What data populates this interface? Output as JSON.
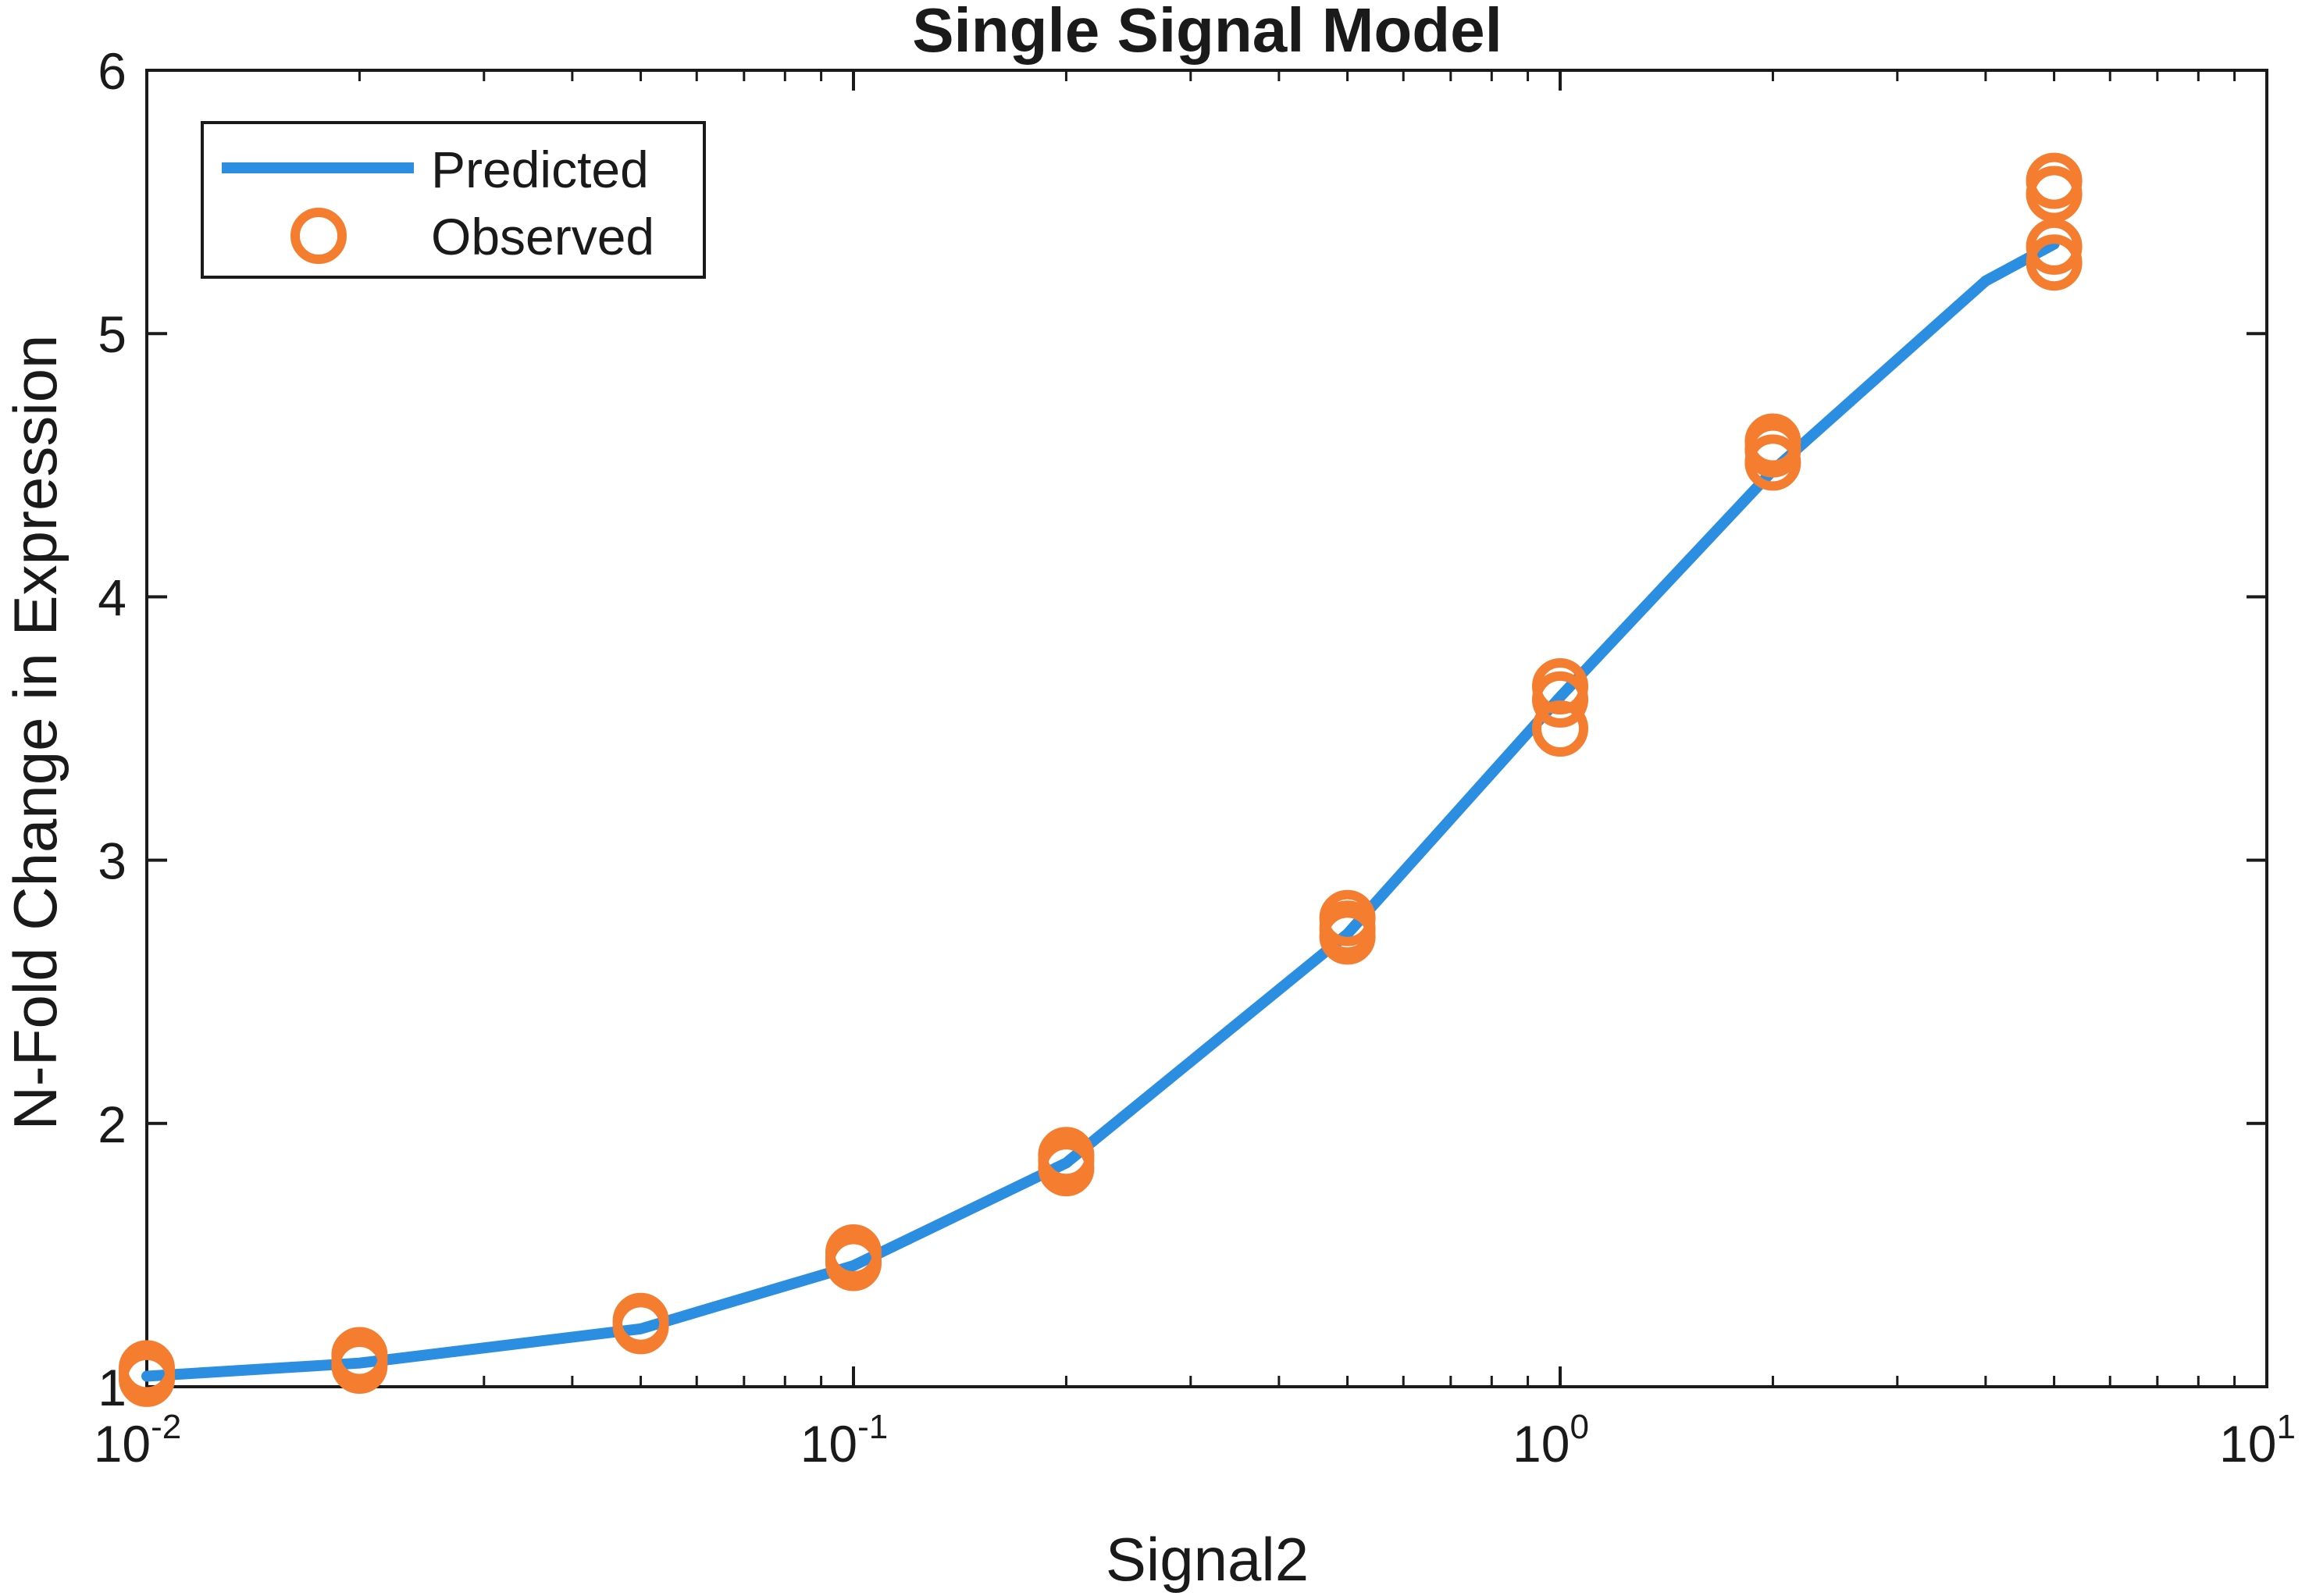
{
  "chart_data": {
    "type": "line",
    "title": "Single Signal Model",
    "xlabel": "Signal2",
    "ylabel": "N-Fold Change in Expression",
    "x_scale": "log",
    "xlim": [
      0.01,
      10
    ],
    "ylim": [
      1,
      6
    ],
    "x_ticks": [
      {
        "base": "10",
        "exp": "-2",
        "value": 0.01
      },
      {
        "base": "10",
        "exp": "-1",
        "value": 0.1
      },
      {
        "base": "10",
        "exp": "0",
        "value": 1
      },
      {
        "base": "10",
        "exp": "1",
        "value": 10
      }
    ],
    "y_ticks": [
      "1",
      "2",
      "3",
      "4",
      "5",
      "6"
    ],
    "grid": false,
    "legend_position": "top-left",
    "series": [
      {
        "name": "Predicted",
        "kind": "line",
        "color": "#2b8ee0",
        "x": [
          0.01,
          0.02,
          0.05,
          0.1,
          0.2,
          0.5,
          1,
          2,
          4,
          5
        ],
        "y": [
          1.04,
          1.09,
          1.22,
          1.46,
          1.85,
          2.72,
          3.62,
          4.48,
          5.2,
          5.34
        ]
      },
      {
        "name": "Observed",
        "kind": "scatter",
        "marker": "open-circle",
        "color": "#f47d30",
        "x": [
          0.01,
          0.01,
          0.01,
          0.02,
          0.02,
          0.02,
          0.05,
          0.05,
          0.1,
          0.1,
          0.1,
          0.2,
          0.2,
          0.2,
          0.5,
          0.5,
          0.5,
          1,
          1,
          1,
          2,
          2,
          2,
          5,
          5,
          5,
          5
        ],
        "y": [
          1.03,
          1.05,
          1.07,
          1.08,
          1.1,
          1.12,
          1.23,
          1.25,
          1.47,
          1.49,
          1.51,
          1.83,
          1.86,
          1.88,
          2.71,
          2.74,
          2.78,
          3.5,
          3.61,
          3.66,
          4.51,
          4.56,
          4.59,
          5.27,
          5.33,
          5.53,
          5.58
        ]
      }
    ]
  }
}
